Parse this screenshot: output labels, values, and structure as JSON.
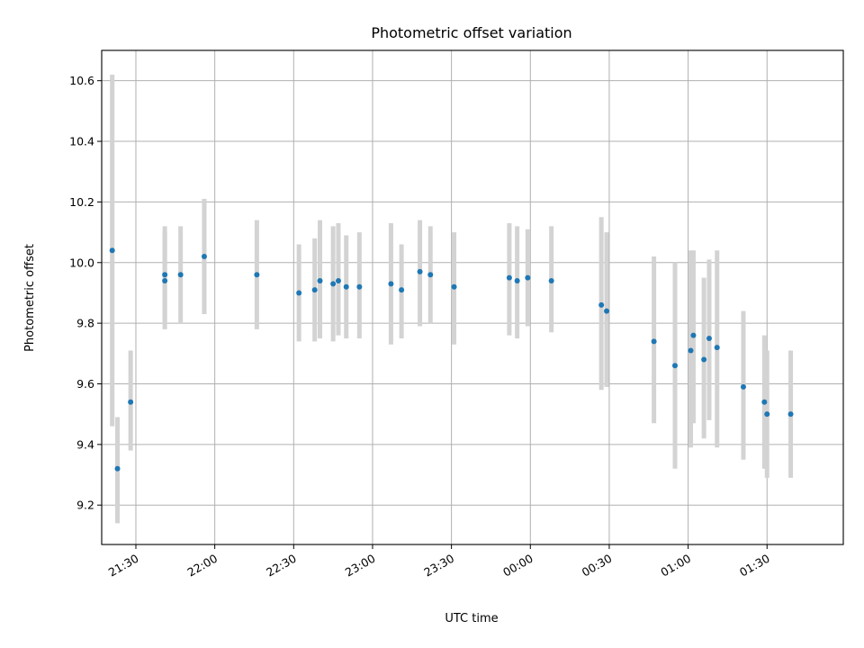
{
  "chart_data": {
    "type": "scatter",
    "title": "Photometric offset variation",
    "xlabel": "UTC time",
    "ylabel": "Photometric offset",
    "x_unit": "UTC time (clock, crossing midnight)",
    "xlim": [
      "21:17",
      "01:59"
    ],
    "ylim": [
      9.07,
      10.7
    ],
    "grid": true,
    "xticks": [
      "21:30",
      "22:00",
      "22:30",
      "23:00",
      "23:30",
      "00:00",
      "00:30",
      "01:00",
      "01:30"
    ],
    "yticks": [
      "9.2",
      "9.4",
      "9.6",
      "9.8",
      "10.0",
      "10.2",
      "10.4",
      "10.6"
    ],
    "yticks_values": [
      9.2,
      9.4,
      9.6,
      9.8,
      10.0,
      10.2,
      10.4,
      10.6
    ],
    "colors": {
      "point": "#1f77b4",
      "errorbar": "#d3d3d3",
      "grid": "#b0b0b0"
    },
    "points": [
      {
        "t": "21:21",
        "y": 10.04,
        "lo": 9.46,
        "hi": 10.62
      },
      {
        "t": "21:23",
        "y": 9.32,
        "lo": 9.14,
        "hi": 9.49
      },
      {
        "t": "21:28",
        "y": 9.54,
        "lo": 9.38,
        "hi": 9.71
      },
      {
        "t": "21:41",
        "y": 9.94,
        "lo": 9.78,
        "hi": 10.1
      },
      {
        "t": "21:41",
        "y": 9.96,
        "lo": 9.8,
        "hi": 10.12
      },
      {
        "t": "21:47",
        "y": 9.96,
        "lo": 9.8,
        "hi": 10.12
      },
      {
        "t": "21:56",
        "y": 10.02,
        "lo": 9.83,
        "hi": 10.21
      },
      {
        "t": "22:16",
        "y": 9.96,
        "lo": 9.78,
        "hi": 10.14
      },
      {
        "t": "22:32",
        "y": 9.9,
        "lo": 9.74,
        "hi": 10.06
      },
      {
        "t": "22:38",
        "y": 9.91,
        "lo": 9.74,
        "hi": 10.08
      },
      {
        "t": "22:40",
        "y": 9.94,
        "lo": 9.75,
        "hi": 10.14
      },
      {
        "t": "22:45",
        "y": 9.93,
        "lo": 9.74,
        "hi": 10.12
      },
      {
        "t": "22:47",
        "y": 9.94,
        "lo": 9.76,
        "hi": 10.13
      },
      {
        "t": "22:50",
        "y": 9.92,
        "lo": 9.75,
        "hi": 10.09
      },
      {
        "t": "22:55",
        "y": 9.92,
        "lo": 9.75,
        "hi": 10.1
      },
      {
        "t": "23:07",
        "y": 9.93,
        "lo": 9.73,
        "hi": 10.13
      },
      {
        "t": "23:11",
        "y": 9.91,
        "lo": 9.75,
        "hi": 10.06
      },
      {
        "t": "23:18",
        "y": 9.97,
        "lo": 9.79,
        "hi": 10.14
      },
      {
        "t": "23:22",
        "y": 9.96,
        "lo": 9.8,
        "hi": 10.12
      },
      {
        "t": "23:31",
        "y": 9.92,
        "lo": 9.73,
        "hi": 10.1
      },
      {
        "t": "23:52",
        "y": 9.95,
        "lo": 9.76,
        "hi": 10.13
      },
      {
        "t": "23:55",
        "y": 9.94,
        "lo": 9.75,
        "hi": 10.12
      },
      {
        "t": "23:59",
        "y": 9.95,
        "lo": 9.79,
        "hi": 10.11
      },
      {
        "t": "00:08",
        "y": 9.94,
        "lo": 9.77,
        "hi": 10.12
      },
      {
        "t": "00:27",
        "y": 9.86,
        "lo": 9.58,
        "hi": 10.15
      },
      {
        "t": "00:29",
        "y": 9.84,
        "lo": 9.59,
        "hi": 10.1
      },
      {
        "t": "00:47",
        "y": 9.74,
        "lo": 9.47,
        "hi": 10.02
      },
      {
        "t": "00:55",
        "y": 9.66,
        "lo": 9.32,
        "hi": 10.0
      },
      {
        "t": "01:01",
        "y": 9.71,
        "lo": 9.39,
        "hi": 10.04
      },
      {
        "t": "01:02",
        "y": 9.76,
        "lo": 9.47,
        "hi": 10.04
      },
      {
        "t": "01:06",
        "y": 9.68,
        "lo": 9.42,
        "hi": 9.95
      },
      {
        "t": "01:08",
        "y": 9.75,
        "lo": 9.48,
        "hi": 10.01
      },
      {
        "t": "01:11",
        "y": 9.72,
        "lo": 9.39,
        "hi": 10.04
      },
      {
        "t": "01:21",
        "y": 9.59,
        "lo": 9.35,
        "hi": 9.84
      },
      {
        "t": "01:29",
        "y": 9.54,
        "lo": 9.32,
        "hi": 9.76
      },
      {
        "t": "01:30",
        "y": 9.5,
        "lo": 9.29,
        "hi": 9.71
      },
      {
        "t": "01:39",
        "y": 9.5,
        "lo": 9.29,
        "hi": 9.71
      }
    ]
  }
}
